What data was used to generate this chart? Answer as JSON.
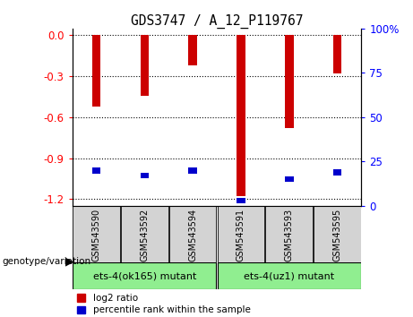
{
  "title": "GDS3747 / A_12_P119767",
  "samples": [
    "GSM543590",
    "GSM543592",
    "GSM543594",
    "GSM543591",
    "GSM543593",
    "GSM543595"
  ],
  "log2_ratio": [
    -0.52,
    -0.44,
    -0.22,
    -1.18,
    -0.68,
    -0.28
  ],
  "percentile_rank": [
    20,
    17,
    20,
    3,
    15,
    19
  ],
  "groups": [
    {
      "label": "ets-4(ok165) mutant",
      "indices": [
        0,
        1,
        2
      ],
      "color": "#90ee90"
    },
    {
      "label": "ets-4(uz1) mutant",
      "indices": [
        3,
        4,
        5
      ],
      "color": "#90ee90"
    }
  ],
  "ylim_left": [
    -1.25,
    0.05
  ],
  "ylim_right": [
    0,
    100
  ],
  "yticks_left": [
    0.0,
    -0.3,
    -0.6,
    -0.9,
    -1.2
  ],
  "yticks_right": [
    0,
    25,
    50,
    75,
    100
  ],
  "bar_color_red": "#cc0000",
  "bar_color_blue": "#0000cc",
  "bar_width": 0.18,
  "background_color": "#ffffff",
  "sample_box_color": "#d3d3d3",
  "legend_red": "log2 ratio",
  "legend_blue": "percentile rank within the sample",
  "genotype_label": "genotype/variation"
}
